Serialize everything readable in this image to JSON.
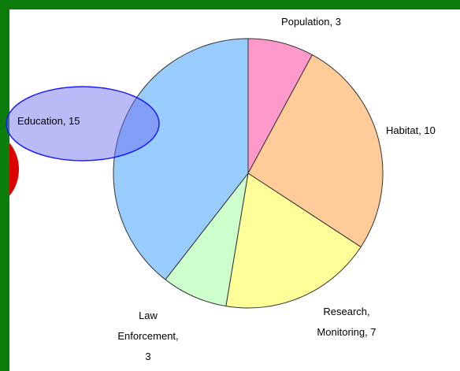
{
  "chart_data": {
    "type": "pie",
    "values": [
      3,
      10,
      7,
      3,
      15
    ],
    "value_labels": [
      "Population, 3",
      "Habitat, 10",
      "Research,\nMonitoring, 7",
      "Law\nEnforcement,\n3",
      "Education, 15"
    ],
    "colors": [
      "#ff99cc",
      "#ffcc99",
      "#ffff99",
      "#ccffcc",
      "#99ccff"
    ]
  }
}
